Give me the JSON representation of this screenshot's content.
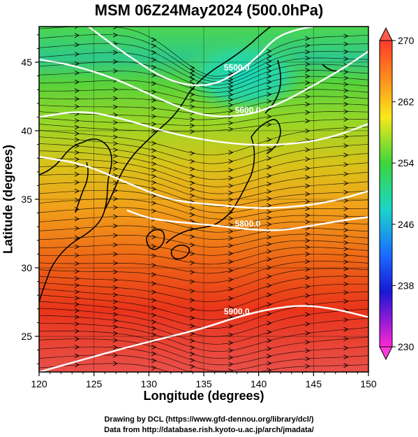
{
  "title": "MSM 06Z24May2024 (500.0hPa)",
  "credits": {
    "line1": "Drawing by DCL (https://www.gfd-dennou.org/library/dcl/)",
    "line2": "Data from http://database.rish.kyoto-u.ac.jp/arch/jmadata/"
  },
  "chart_data": {
    "type": "heatmap",
    "title": "MSM 06Z24May2024 (500.0hPa)",
    "xlabel": "Longitude (degrees)",
    "ylabel": "Latitude  (degrees)",
    "xlim": [
      120,
      150
    ],
    "ylim": [
      22.4,
      47.6
    ],
    "x_ticks": [
      120,
      125,
      130,
      135,
      140,
      145,
      150
    ],
    "y_ticks": [
      25,
      30,
      35,
      40,
      45
    ],
    "x_tick_labels": [
      "120",
      "125",
      "130",
      "135",
      "140",
      "145",
      "150"
    ],
    "y_tick_labels": [
      "25",
      "30",
      "35",
      "40",
      "45"
    ],
    "colorbar": {
      "min": 230,
      "max": 270,
      "ticks": [
        270,
        262,
        254,
        246,
        238,
        230
      ],
      "tick_labels": [
        "270",
        "262",
        "254",
        "246",
        "238",
        "230"
      ]
    },
    "contours": [
      {
        "label": "5500.0",
        "points": [
          [
            124.5,
            47.6
          ],
          [
            128,
            45.5
          ],
          [
            132,
            43.5
          ],
          [
            135.5,
            43.2
          ],
          [
            138,
            44.2
          ],
          [
            139.8,
            45.3
          ],
          [
            141.5,
            46.8
          ],
          [
            143.5,
            47.4
          ],
          [
            145,
            47.6
          ]
        ]
      },
      {
        "label": "5600.0",
        "points": [
          [
            120,
            45.2
          ],
          [
            123,
            44.8
          ],
          [
            127,
            43.8
          ],
          [
            131,
            42.3
          ],
          [
            135,
            41.0
          ],
          [
            139,
            41.1
          ],
          [
            142,
            42.0
          ],
          [
            145,
            43.3
          ],
          [
            148,
            44.7
          ],
          [
            150,
            45.8
          ]
        ]
      },
      {
        "label": "",
        "points": [
          [
            120,
            41.0
          ],
          [
            124,
            41.5
          ],
          [
            128,
            40.8
          ],
          [
            132,
            39.8
          ],
          [
            136,
            39.2
          ],
          [
            140,
            38.9
          ],
          [
            144,
            39.1
          ],
          [
            147,
            39.6
          ],
          [
            150,
            40.5
          ]
        ]
      },
      {
        "label": "",
        "points": [
          [
            120,
            38.1
          ],
          [
            124,
            37.6
          ],
          [
            128,
            36.2
          ],
          [
            132,
            34.9
          ],
          [
            136,
            34.6
          ],
          [
            140,
            34.3
          ],
          [
            144,
            34.5
          ],
          [
            147,
            34.9
          ],
          [
            150,
            35.6
          ]
        ]
      },
      {
        "label": "5800.0",
        "points": [
          [
            128,
            34.2
          ],
          [
            130,
            33.6
          ],
          [
            133,
            33.3
          ],
          [
            136,
            33.1
          ],
          [
            139,
            32.8
          ],
          [
            142,
            32.7
          ],
          [
            145,
            33.1
          ],
          [
            148,
            33.5
          ],
          [
            150,
            33.7
          ]
        ]
      },
      {
        "label": "5900.0",
        "points": [
          [
            120,
            22.4
          ],
          [
            124,
            23.3
          ],
          [
            128,
            24.2
          ],
          [
            132,
            25.0
          ],
          [
            135,
            25.6
          ],
          [
            138,
            26.4
          ],
          [
            141,
            27.0
          ],
          [
            144,
            27.3
          ],
          [
            147,
            27.0
          ],
          [
            150,
            26.4
          ]
        ]
      }
    ]
  }
}
